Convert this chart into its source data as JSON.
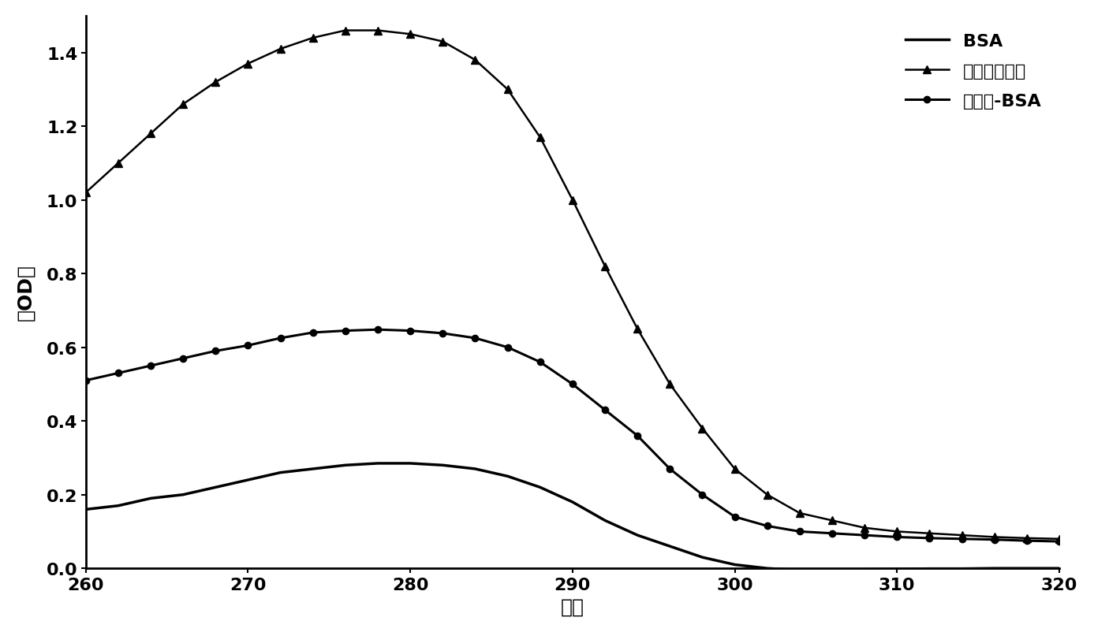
{
  "xlabel": "波长",
  "ylabel": "光OD值",
  "xlim": [
    260,
    320
  ],
  "ylim": [
    0,
    1.5
  ],
  "xticks": [
    260,
    270,
    280,
    290,
    300,
    310,
    320
  ],
  "yticks": [
    0,
    0.2,
    0.4,
    0.6,
    0.8,
    1.0,
    1.2,
    1.4
  ],
  "legend_labels": [
    "BSA",
    "美沙醇半抗原",
    "美沙醇-BSA"
  ],
  "bsa_x": [
    260,
    262,
    264,
    266,
    268,
    270,
    272,
    274,
    276,
    278,
    280,
    282,
    284,
    286,
    288,
    290,
    292,
    294,
    296,
    298,
    300,
    302,
    304,
    306,
    308,
    310,
    312,
    314,
    316,
    318,
    320
  ],
  "bsa_y": [
    0.16,
    0.17,
    0.19,
    0.2,
    0.22,
    0.24,
    0.26,
    0.27,
    0.28,
    0.285,
    0.285,
    0.28,
    0.27,
    0.25,
    0.22,
    0.18,
    0.13,
    0.09,
    0.06,
    0.03,
    0.01,
    0.0,
    -0.005,
    -0.005,
    -0.003,
    -0.002,
    -0.001,
    -0.001,
    0.0,
    0.0,
    0.0
  ],
  "hapten_x": [
    260,
    262,
    264,
    266,
    268,
    270,
    272,
    274,
    276,
    278,
    280,
    282,
    284,
    286,
    288,
    290,
    292,
    294,
    296,
    298,
    300,
    302,
    304,
    306,
    308,
    310,
    312,
    314,
    316,
    318,
    320
  ],
  "hapten_y": [
    1.02,
    1.1,
    1.18,
    1.26,
    1.32,
    1.37,
    1.41,
    1.44,
    1.46,
    1.46,
    1.45,
    1.43,
    1.38,
    1.3,
    1.17,
    1.0,
    0.82,
    0.65,
    0.5,
    0.38,
    0.27,
    0.2,
    0.15,
    0.13,
    0.11,
    0.1,
    0.095,
    0.09,
    0.085,
    0.082,
    0.08
  ],
  "antigen_x": [
    260,
    262,
    264,
    266,
    268,
    270,
    272,
    274,
    276,
    278,
    280,
    282,
    284,
    286,
    288,
    290,
    292,
    294,
    296,
    298,
    300,
    302,
    304,
    306,
    308,
    310,
    312,
    314,
    316,
    318,
    320
  ],
  "antigen_y": [
    0.51,
    0.53,
    0.55,
    0.57,
    0.59,
    0.605,
    0.625,
    0.64,
    0.645,
    0.648,
    0.645,
    0.638,
    0.625,
    0.6,
    0.56,
    0.5,
    0.43,
    0.36,
    0.27,
    0.2,
    0.14,
    0.115,
    0.1,
    0.095,
    0.09,
    0.085,
    0.082,
    0.08,
    0.078,
    0.075,
    0.073
  ],
  "line_color": "#000000",
  "marker_triangle": "^",
  "marker_circle": "o",
  "marker_size_tri": 7,
  "marker_size_circ": 6,
  "linewidth_bsa": 2.5,
  "linewidth_hapten": 1.8,
  "linewidth_antigen": 2.2,
  "bg_color": "#ffffff",
  "font_size_label": 18,
  "font_size_tick": 16,
  "font_size_legend": 16
}
